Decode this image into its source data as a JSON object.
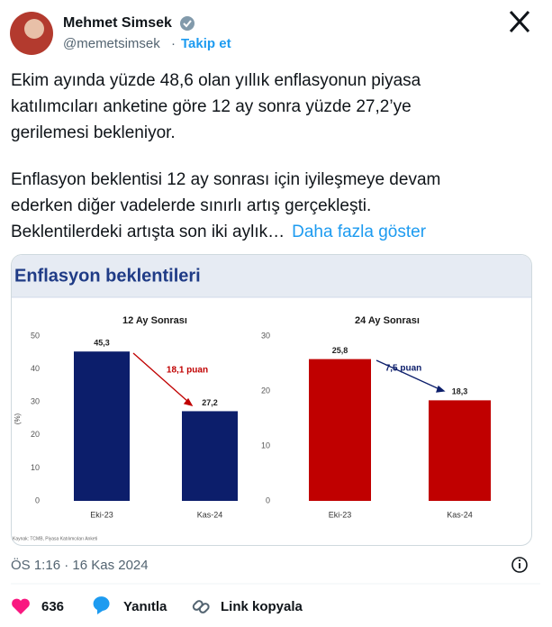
{
  "tweet": {
    "author": {
      "name": "Mehmet Simsek",
      "handle": "@memetsimsek",
      "separator": "·",
      "follow": "Takip et"
    },
    "text": {
      "paragraphs": [
        [
          "Ekim ayında yüzde 48,6 olan yıllık enflasyonun piyasa",
          "katılımcıları anketine göre 12 ay sonra yüzde 27,2’ye",
          "gerilemesi bekleniyor."
        ],
        [
          "Enflasyon beklentisi 12 ay sonrası için iyileşmeye devam",
          "ederken diğer vadelerde sınırlı artış gerçekleşti.",
          "Beklentilerdeki artışta son iki aylık…"
        ]
      ],
      "more": "Daha fazla göster"
    },
    "image": {
      "title": "Enflasyon beklentileri",
      "source": "Kaynak: TCMB, Piyasa Katılımcıları Anketi"
    },
    "timestamp": "ÖS 1:16 · 16 Kas 2024",
    "actions": {
      "likes": "636",
      "reply": "Yanıtla",
      "copy_link": "Link kopyala"
    }
  },
  "chart_data": [
    {
      "type": "bar",
      "title": "12 Ay Sonrası",
      "y_label": "(%)",
      "categories": [
        "Eki-23",
        "Kas-24"
      ],
      "values": [
        45.3,
        27.2
      ],
      "value_labels": [
        "45,3",
        "27,2"
      ],
      "color": "#0c1e6b",
      "ylim": [
        0,
        50
      ],
      "yticks": [
        0,
        10,
        20,
        30,
        40,
        50
      ],
      "annotation": "18,1 puan"
    },
    {
      "type": "bar",
      "title": "24 Ay Sonrası",
      "categories": [
        "Eki-23",
        "Kas-24"
      ],
      "values": [
        25.8,
        18.3
      ],
      "value_labels": [
        "25,8",
        "18,3"
      ],
      "color": "#c00000",
      "ylim": [
        0,
        30
      ],
      "yticks": [
        0,
        10,
        20,
        30
      ],
      "annotation": "7,5 puan"
    }
  ]
}
